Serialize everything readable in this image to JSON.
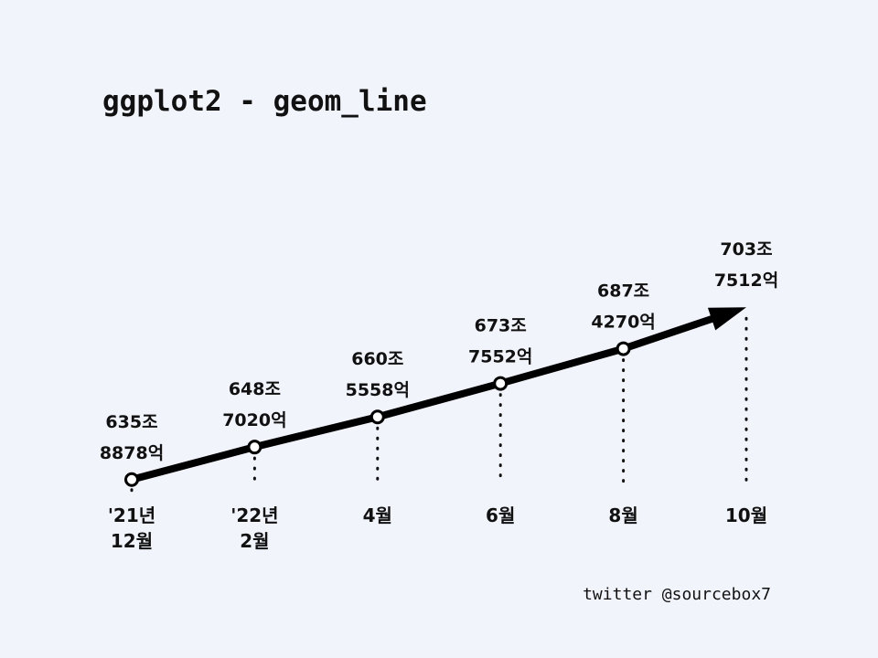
{
  "chart_data": {
    "type": "line",
    "title": "ggplot2 - geom_line",
    "categories": [
      [
        "'21년",
        "12월"
      ],
      [
        "'22년",
        "2월"
      ],
      [
        "4월"
      ],
      [
        "6월"
      ],
      [
        "8월"
      ],
      [
        "10월"
      ]
    ],
    "values": [
      635.8878,
      648.702,
      660.5558,
      673.7552,
      687.427,
      703.7512
    ],
    "value_labels": [
      [
        "635조",
        "8878억"
      ],
      [
        "648조",
        "7020억"
      ],
      [
        "660조",
        "5558억"
      ],
      [
        "673조",
        "7552억"
      ],
      [
        "687조",
        "4270억"
      ],
      [
        "703조",
        "7512억"
      ]
    ],
    "ylim": [
      580,
      760
    ],
    "grid": false,
    "legend": "none",
    "end_marker": "arrow",
    "line_color": "#000000",
    "background": "#f1f4fb"
  },
  "footer": {
    "credit": "twitter @sourcebox7"
  }
}
